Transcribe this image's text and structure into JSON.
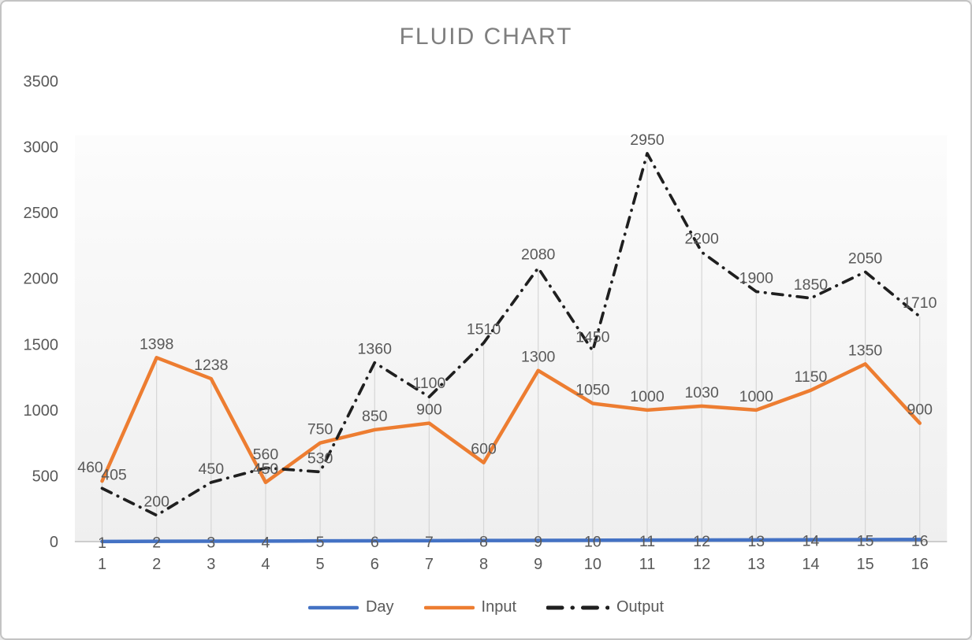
{
  "chart_data": {
    "type": "line",
    "title": "FLUID CHART",
    "xlabel": "",
    "ylabel": "",
    "ylim": [
      0,
      3500
    ],
    "yticks": [
      0,
      500,
      1000,
      1500,
      2000,
      2500,
      3000,
      3500
    ],
    "categories": [
      1,
      2,
      3,
      4,
      5,
      6,
      7,
      8,
      9,
      10,
      11,
      12,
      13,
      14,
      15,
      16
    ],
    "grid": "vertical-drop-lines-only",
    "legend_position": "bottom",
    "data_labels_visible": true,
    "series": [
      {
        "name": "Day",
        "color": "#4472C4",
        "line_style": "solid",
        "label_placement": "on-line",
        "values": [
          1,
          2,
          3,
          4,
          5,
          6,
          7,
          8,
          9,
          10,
          11,
          12,
          13,
          14,
          15,
          16
        ]
      },
      {
        "name": "Input",
        "color": "#ED7D31",
        "line_style": "solid",
        "label_placement": "above",
        "values": [
          460,
          1398,
          1238,
          450,
          750,
          850,
          900,
          600,
          1300,
          1050,
          1000,
          1030,
          1000,
          1150,
          1350,
          900
        ]
      },
      {
        "name": "Output",
        "color": "#1f1f1f",
        "line_style": "dash-dot",
        "label_placement": "above",
        "values": [
          405,
          200,
          450,
          560,
          530,
          1360,
          1100,
          1510,
          2080,
          1450,
          2950,
          2200,
          1900,
          1850,
          2050,
          1710
        ]
      }
    ],
    "colors": {
      "title_text": "#7f7f7f",
      "axis_text": "#595959",
      "label_text": "#595959",
      "axis_line": "#bfbfbf",
      "drop_line": "#d6d6d6",
      "plot_fill_top": "#fcfcfc",
      "plot_fill_bottom": "#efefef",
      "canvas_border": "#c3c3c3"
    }
  }
}
